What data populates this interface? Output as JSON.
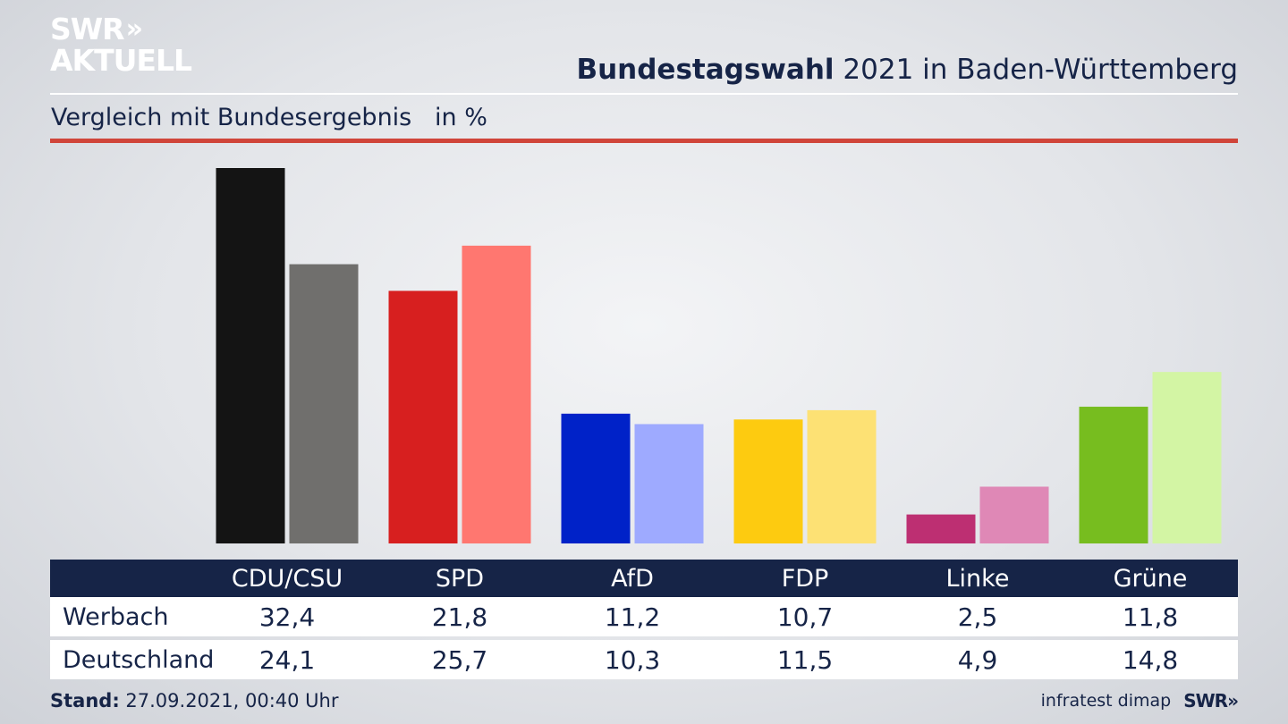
{
  "header": {
    "logo_line1": "SWR",
    "logo_chevrons": "»",
    "logo_line2": "AKTUELL",
    "title_bold": "Bundestagswahl",
    "title_rest": " 2021 in Baden-Württemberg",
    "subtitle": "Vergleich mit Bundesergebnis   in %"
  },
  "chart_data": {
    "type": "bar",
    "categories": [
      "CDU/CSU",
      "SPD",
      "AfD",
      "FDP",
      "Linke",
      "Grüne"
    ],
    "series": [
      {
        "name": "Werbach",
        "values": [
          32.4,
          21.8,
          11.2,
          10.7,
          2.5,
          11.8
        ]
      },
      {
        "name": "Deutschland",
        "values": [
          24.1,
          25.7,
          10.3,
          11.5,
          4.9,
          14.8
        ]
      }
    ],
    "colors": {
      "Werbach": [
        "#141414",
        "#d71f1f",
        "#0022c8",
        "#fdcb10",
        "#bd2f72",
        "#77bd1f"
      ],
      "Deutschland": [
        "#706f6d",
        "#ff7770",
        "#9eaaff",
        "#fde174",
        "#df88b6",
        "#d3f5a4"
      ]
    },
    "ylim": [
      0,
      32.4
    ],
    "grid": false
  },
  "table": {
    "rows": [
      {
        "label": "Werbach",
        "values": [
          "32,4",
          "21,8",
          "11,2",
          "10,7",
          "2,5",
          "11,8"
        ]
      },
      {
        "label": "Deutschland",
        "values": [
          "24,1",
          "25,7",
          "10,3",
          "11,5",
          "4,9",
          "14,8"
        ]
      }
    ]
  },
  "footer": {
    "stand_label": "Stand:",
    "stand_value": " 27.09.2021, 00:40 Uhr",
    "source": "infratest dimap",
    "brand": "SWR»"
  }
}
